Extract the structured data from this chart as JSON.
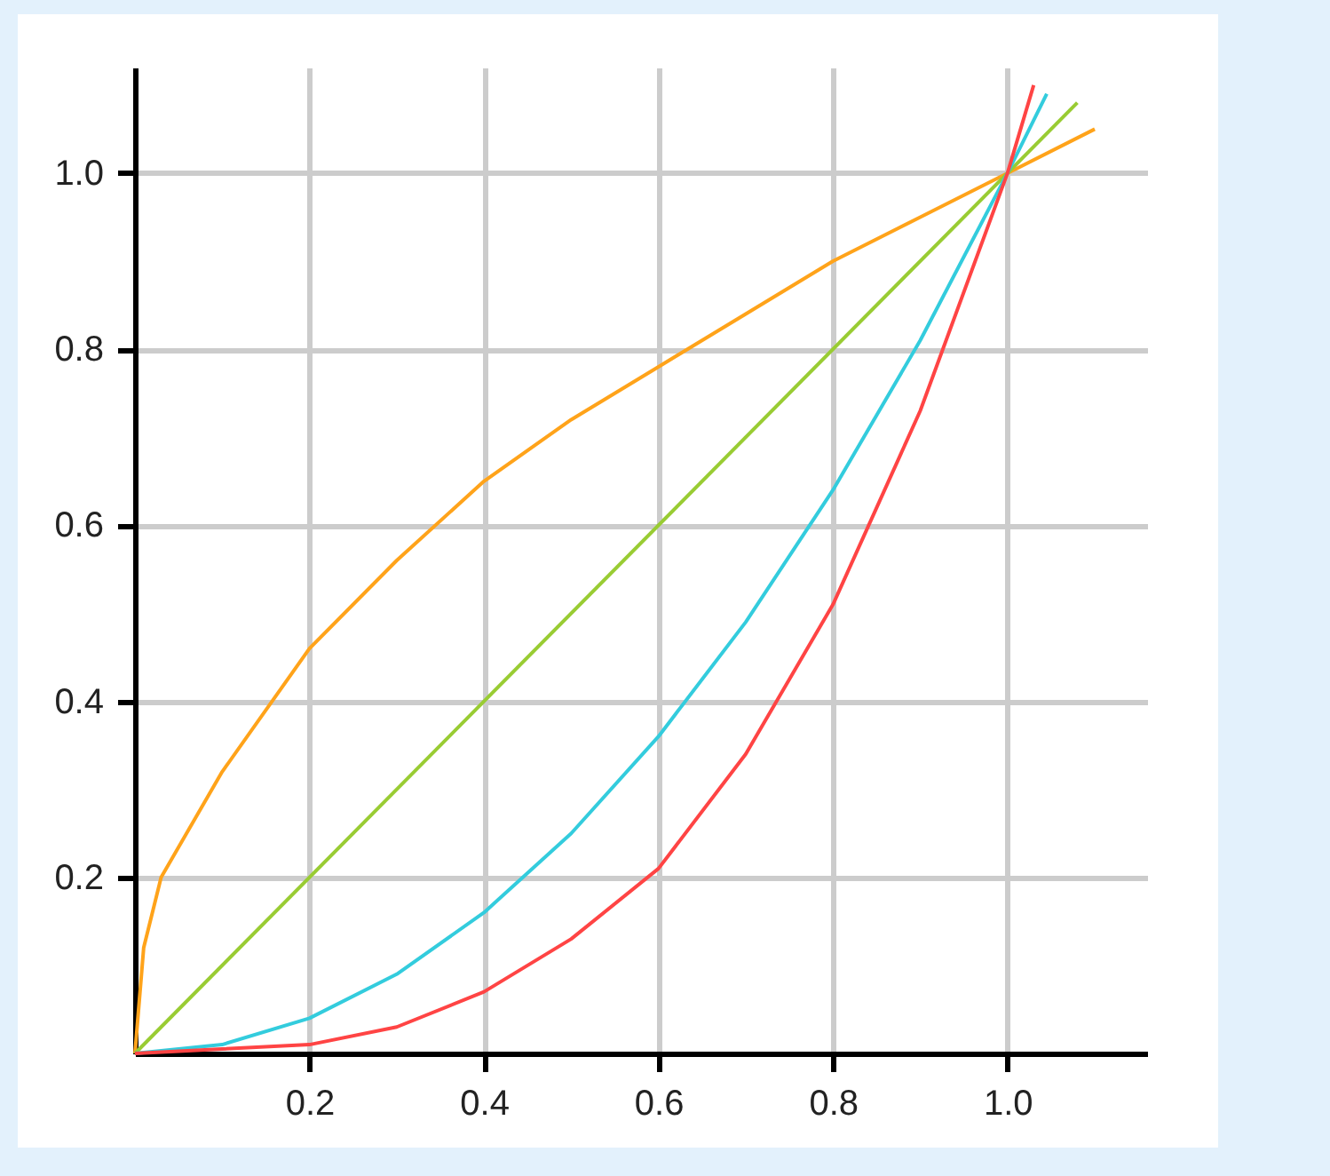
{
  "chart_data": {
    "type": "line",
    "xlim": [
      0,
      1.16
    ],
    "ylim": [
      0,
      1.12
    ],
    "xticks": [
      0.2,
      0.4,
      0.6,
      0.8,
      {
        "value": 1,
        "label": "1.0"
      }
    ],
    "yticks": [
      0.2,
      0.4,
      0.6,
      0.8,
      {
        "value": 1,
        "label": "1.0"
      }
    ],
    "grid": true,
    "legend": false,
    "marker": "none",
    "line_style": "solid",
    "series": [
      {
        "color": "#ffa31a",
        "x": [
          0,
          0.01,
          0.03,
          0.1,
          0.2,
          0.3,
          0.4,
          0.5,
          0.6,
          0.7,
          0.8,
          0.9,
          1.0,
          1.1
        ],
        "values": [
          0,
          0.12,
          0.2,
          0.32,
          0.46,
          0.56,
          0.65,
          0.72,
          0.78,
          0.84,
          0.9,
          0.95,
          1.0,
          1.05
        ]
      },
      {
        "color": "#99cc33",
        "x": [
          0,
          1.08
        ],
        "values": [
          0,
          1.08
        ]
      },
      {
        "color": "#33ccdd",
        "x": [
          0,
          0.1,
          0.2,
          0.3,
          0.4,
          0.5,
          0.6,
          0.7,
          0.8,
          0.9,
          1.0,
          1.045
        ],
        "values": [
          0,
          0.01,
          0.04,
          0.09,
          0.16,
          0.25,
          0.36,
          0.49,
          0.64,
          0.81,
          1.0,
          1.09
        ]
      },
      {
        "color": "#ff4444",
        "x": [
          0,
          0.1,
          0.2,
          0.3,
          0.4,
          0.5,
          0.6,
          0.7,
          0.8,
          0.9,
          1.0,
          1.03
        ],
        "values": [
          0,
          0.005,
          0.01,
          0.03,
          0.07,
          0.13,
          0.21,
          0.34,
          0.51,
          0.73,
          1.0,
          1.1
        ]
      }
    ]
  }
}
